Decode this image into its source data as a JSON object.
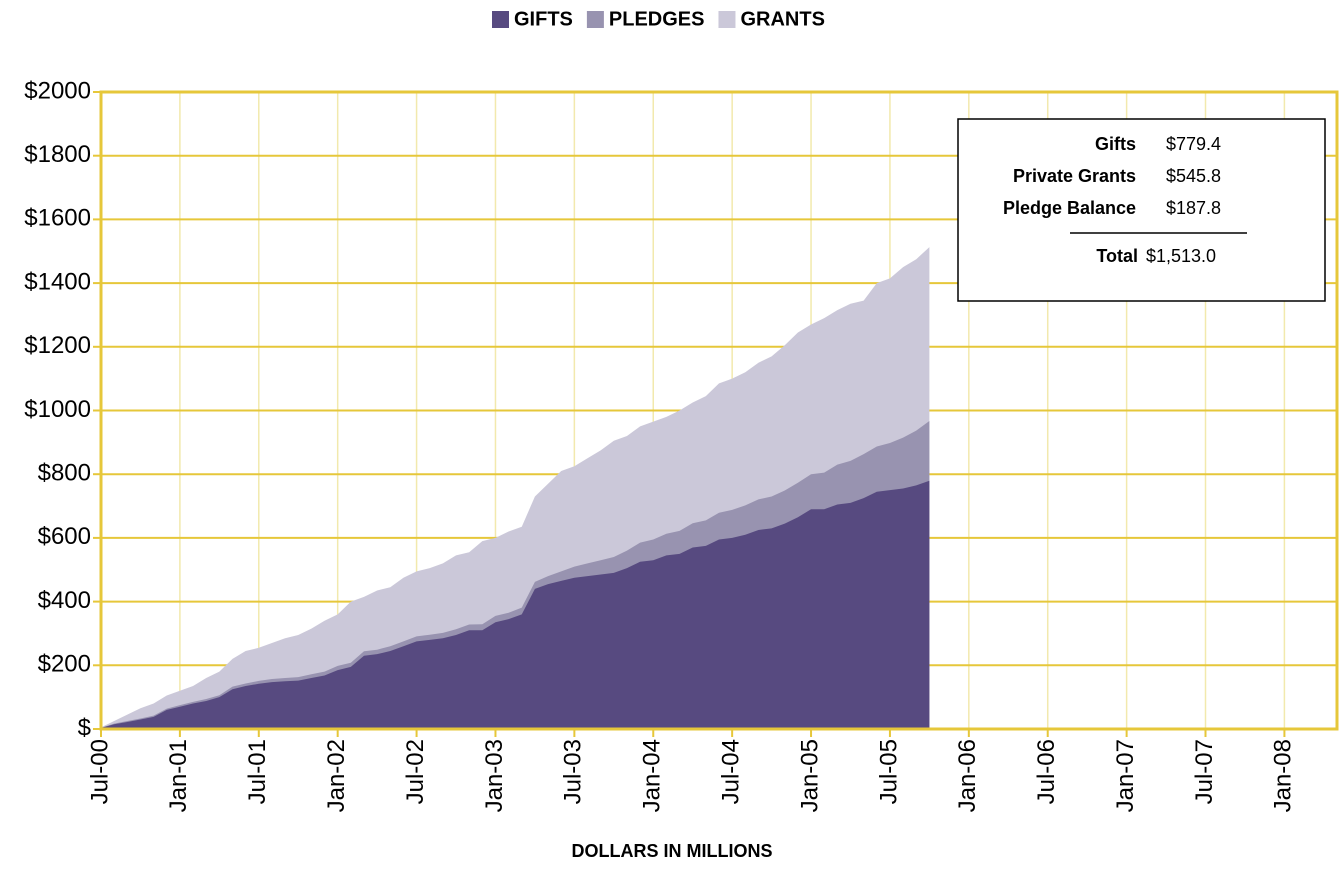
{
  "chart_data": {
    "type": "stacked-area",
    "xlabel": "DOLLARS IN MILLIONS",
    "x": [
      "2000-07",
      "2000-08",
      "2000-09",
      "2000-10",
      "2000-11",
      "2000-12",
      "2001-01",
      "2001-02",
      "2001-03",
      "2001-04",
      "2001-05",
      "2001-06",
      "2001-07",
      "2001-08",
      "2001-09",
      "2001-10",
      "2001-11",
      "2001-12",
      "2002-01",
      "2002-02",
      "2002-03",
      "2002-04",
      "2002-05",
      "2002-06",
      "2002-07",
      "2002-08",
      "2002-09",
      "2002-10",
      "2002-11",
      "2002-12",
      "2003-01",
      "2003-02",
      "2003-03",
      "2003-04",
      "2003-05",
      "2003-06",
      "2003-07",
      "2003-08",
      "2003-09",
      "2003-10",
      "2003-11",
      "2003-12",
      "2004-01",
      "2004-02",
      "2004-03",
      "2004-04",
      "2004-05",
      "2004-06",
      "2004-07",
      "2004-08",
      "2004-09",
      "2004-10",
      "2004-11",
      "2004-12",
      "2005-01",
      "2005-02",
      "2005-03",
      "2005-04",
      "2005-05",
      "2005-06",
      "2005-07",
      "2005-08",
      "2005-09",
      "2005-10"
    ],
    "series": [
      {
        "name": "GIFTS",
        "color": "#574a80",
        "values": [
          3,
          15,
          22,
          30,
          38,
          60,
          70,
          80,
          88,
          100,
          125,
          135,
          142,
          147,
          150,
          152,
          160,
          168,
          185,
          195,
          230,
          235,
          245,
          260,
          275,
          280,
          285,
          295,
          310,
          310,
          335,
          345,
          360,
          440,
          455,
          465,
          475,
          480,
          485,
          490,
          505,
          525,
          530,
          545,
          550,
          570,
          575,
          595,
          600,
          610,
          625,
          630,
          645,
          665,
          690,
          690,
          705,
          710,
          725,
          745,
          750,
          755,
          765,
          779.4
        ]
      },
      {
        "name": "PLEDGES",
        "color": "#9893b0",
        "values": [
          1,
          2,
          3,
          3,
          4,
          4,
          5,
          5,
          6,
          6,
          8,
          8,
          9,
          10,
          10,
          11,
          12,
          12,
          13,
          13,
          14,
          14,
          15,
          15,
          16,
          16,
          17,
          18,
          18,
          19,
          20,
          20,
          21,
          22,
          25,
          30,
          35,
          40,
          45,
          50,
          55,
          60,
          65,
          68,
          72,
          76,
          80,
          84,
          88,
          92,
          96,
          100,
          104,
          108,
          110,
          115,
          125,
          132,
          138,
          142,
          148,
          160,
          172,
          187.8
        ]
      },
      {
        "name": "GRANTS",
        "color": "#cbc8d9",
        "values": [
          1,
          8,
          20,
          32,
          38,
          41,
          45,
          50,
          66,
          74,
          87,
          102,
          104,
          113,
          125,
          132,
          143,
          160,
          162,
          192,
          171,
          186,
          185,
          200,
          204,
          209,
          218,
          232,
          227,
          261,
          245,
          255,
          254,
          268,
          290,
          315,
          315,
          330,
          345,
          365,
          360,
          365,
          370,
          367,
          378,
          379,
          390,
          406,
          412,
          418,
          429,
          440,
          456,
          472,
          470,
          485,
          485,
          493,
          482,
          513,
          517,
          535,
          538,
          545.8
        ]
      }
    ],
    "xlim": [
      "2000-07",
      "2008-05"
    ],
    "xticks": [
      {
        "value": "2000-07",
        "label": "Jul-00"
      },
      {
        "value": "2001-01",
        "label": "Jan-01"
      },
      {
        "value": "2001-07",
        "label": "Jul-01"
      },
      {
        "value": "2002-01",
        "label": "Jan-02"
      },
      {
        "value": "2002-07",
        "label": "Jul-02"
      },
      {
        "value": "2003-01",
        "label": "Jan-03"
      },
      {
        "value": "2003-07",
        "label": "Jul-03"
      },
      {
        "value": "2004-01",
        "label": "Jan-04"
      },
      {
        "value": "2004-07",
        "label": "Jul-04"
      },
      {
        "value": "2005-01",
        "label": "Jan-05"
      },
      {
        "value": "2005-07",
        "label": "Jul-05"
      },
      {
        "value": "2006-01",
        "label": "Jan-06"
      },
      {
        "value": "2006-07",
        "label": "Jul-06"
      },
      {
        "value": "2007-01",
        "label": "Jan-07"
      },
      {
        "value": "2007-07",
        "label": "Jul-07"
      },
      {
        "value": "2008-01",
        "label": "Jan-08"
      }
    ],
    "ylim": [
      0,
      2000
    ],
    "yticks": [
      {
        "value": 0,
        "label": "$"
      },
      {
        "value": 200,
        "label": "$200"
      },
      {
        "value": 400,
        "label": "$400"
      },
      {
        "value": 600,
        "label": "$600"
      },
      {
        "value": 800,
        "label": "$800"
      },
      {
        "value": 1000,
        "label": "$1000"
      },
      {
        "value": 1200,
        "label": "$1200"
      },
      {
        "value": 1400,
        "label": "$1400"
      },
      {
        "value": 1600,
        "label": "$1600"
      },
      {
        "value": 1800,
        "label": "$1800"
      },
      {
        "value": 2000,
        "label": "$2000"
      }
    ],
    "grid": true,
    "legend": "top",
    "summary": {
      "rows": [
        {
          "label": "Gifts",
          "value": "$779.4"
        },
        {
          "label": "Private Grants",
          "value": "$545.8"
        },
        {
          "label": "Pledge Balance",
          "value": "$187.8"
        }
      ],
      "total": {
        "label": "Total",
        "value": "$1,513.0"
      }
    }
  }
}
